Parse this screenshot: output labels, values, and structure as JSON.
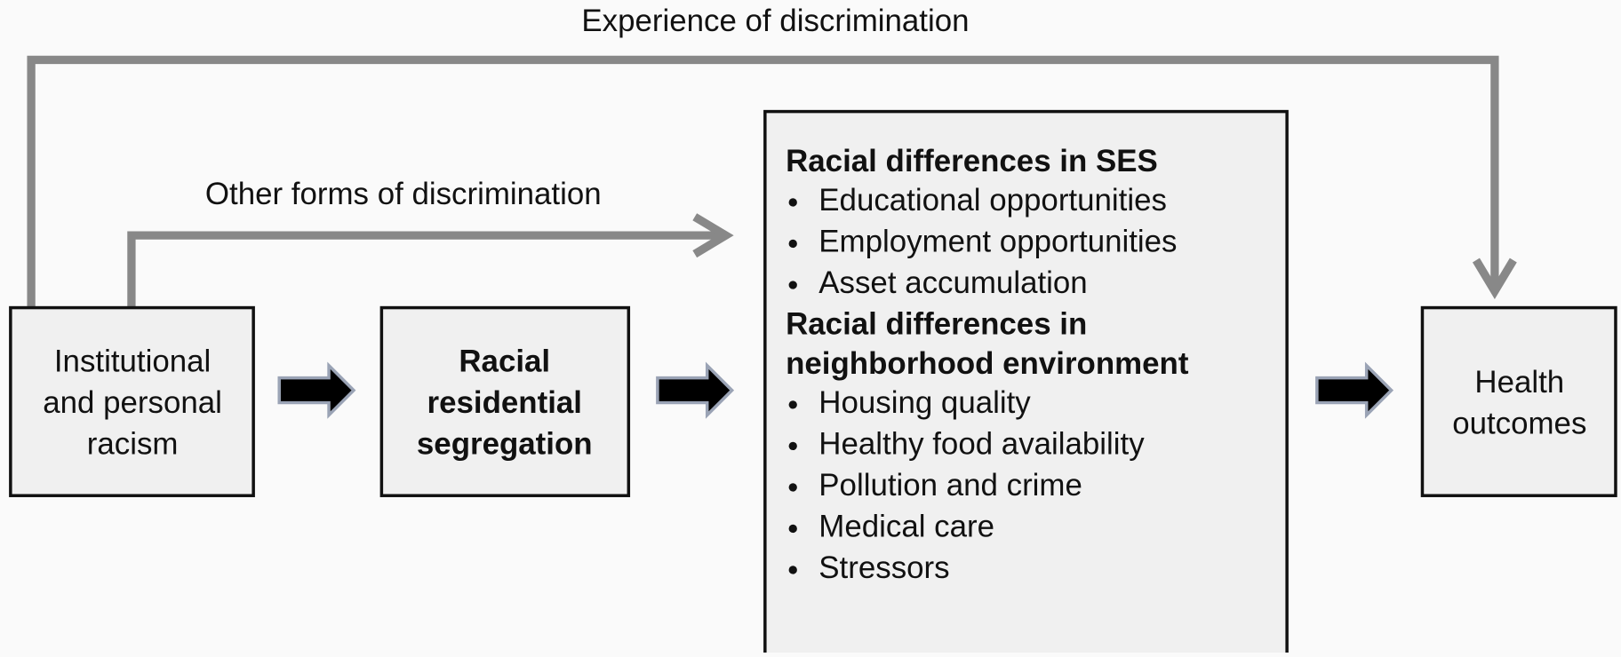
{
  "edges": {
    "top_label": "Experience of  discrimination",
    "middle_label": "Other forms of discrimination"
  },
  "nodes": [
    {
      "lines": [
        "Institutional",
        "and personal",
        "racism"
      ]
    },
    {
      "lines": [
        "Racial",
        "residential",
        "segregation"
      ]
    },
    {
      "sections": [
        {
          "heading": [
            "Racial differences in SES"
          ],
          "items": [
            "Educational opportunities",
            "Employment opportunities",
            "Asset accumulation"
          ]
        },
        {
          "heading": [
            "Racial differences in",
            "neighborhood environment"
          ],
          "items": [
            "Housing quality",
            "Healthy food availability",
            "Pollution and crime",
            "Medical care",
            "Stressors"
          ]
        }
      ]
    },
    {
      "lines": [
        "Health",
        "outcomes"
      ]
    }
  ]
}
